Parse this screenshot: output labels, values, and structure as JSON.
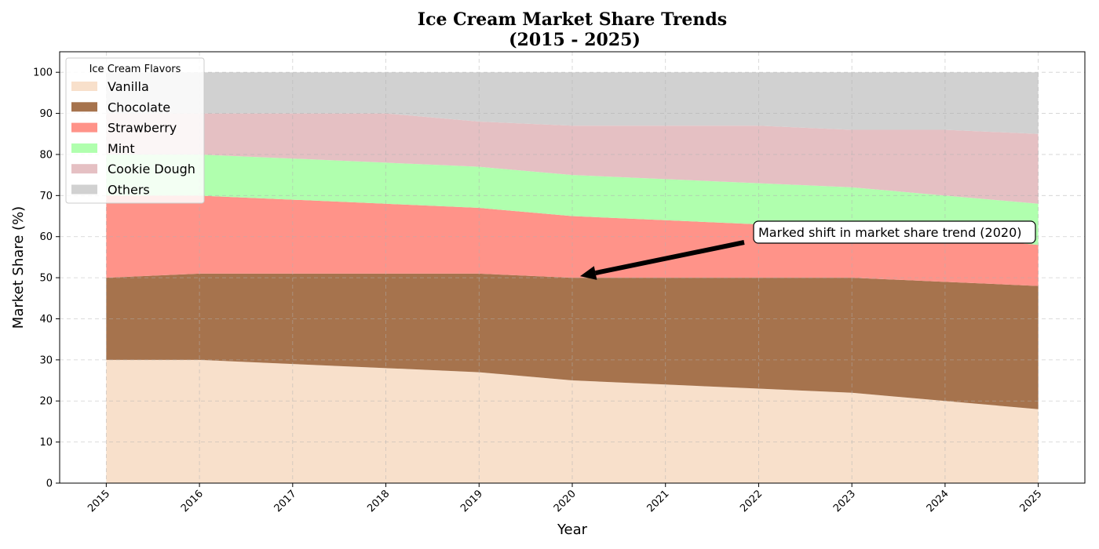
{
  "chart_data": {
    "type": "area",
    "stacked": true,
    "title": "Ice Cream Market Share Trends",
    "subtitle": "(2015 - 2025)",
    "xlabel": "Year",
    "ylabel": "Market Share (%)",
    "x": [
      2015,
      2016,
      2017,
      2018,
      2019,
      2020,
      2021,
      2022,
      2023,
      2024,
      2025
    ],
    "ylim": [
      0,
      105
    ],
    "yticks": [
      0,
      10,
      20,
      30,
      40,
      50,
      60,
      70,
      80,
      90,
      100
    ],
    "grid": true,
    "legend": {
      "title": "Ice Cream Flavors",
      "placement": "upper-left"
    },
    "series": [
      {
        "name": "Vanilla",
        "color": "#F8E0CB",
        "values": [
          30,
          30,
          29,
          28,
          27,
          25,
          24,
          23,
          22,
          20,
          18
        ]
      },
      {
        "name": "Chocolate",
        "color": "#A6734D",
        "values": [
          20,
          21,
          22,
          23,
          24,
          25,
          26,
          27,
          28,
          29,
          30
        ]
      },
      {
        "name": "Strawberry",
        "color": "#FF9389",
        "values": [
          20,
          19,
          18,
          17,
          16,
          15,
          14,
          13,
          12,
          11,
          10
        ]
      },
      {
        "name": "Mint",
        "color": "#B0FFAE",
        "values": [
          10,
          10,
          10,
          10,
          10,
          10,
          10,
          10,
          10,
          10,
          10
        ]
      },
      {
        "name": "Cookie Dough",
        "color": "#E5C0C3",
        "values": [
          10,
          10,
          11,
          12,
          11,
          12,
          13,
          14,
          14,
          16,
          17
        ]
      },
      {
        "name": "Others",
        "color": "#D1D1D1",
        "values": [
          10,
          10,
          10,
          10,
          12,
          13,
          13,
          13,
          14,
          14,
          15
        ]
      }
    ],
    "annotation": {
      "text": "Marked shift in market share trend (2020)",
      "point": {
        "x": 2020,
        "y": 50
      },
      "text_anchor": {
        "x": 2022,
        "y": 61
      }
    }
  }
}
